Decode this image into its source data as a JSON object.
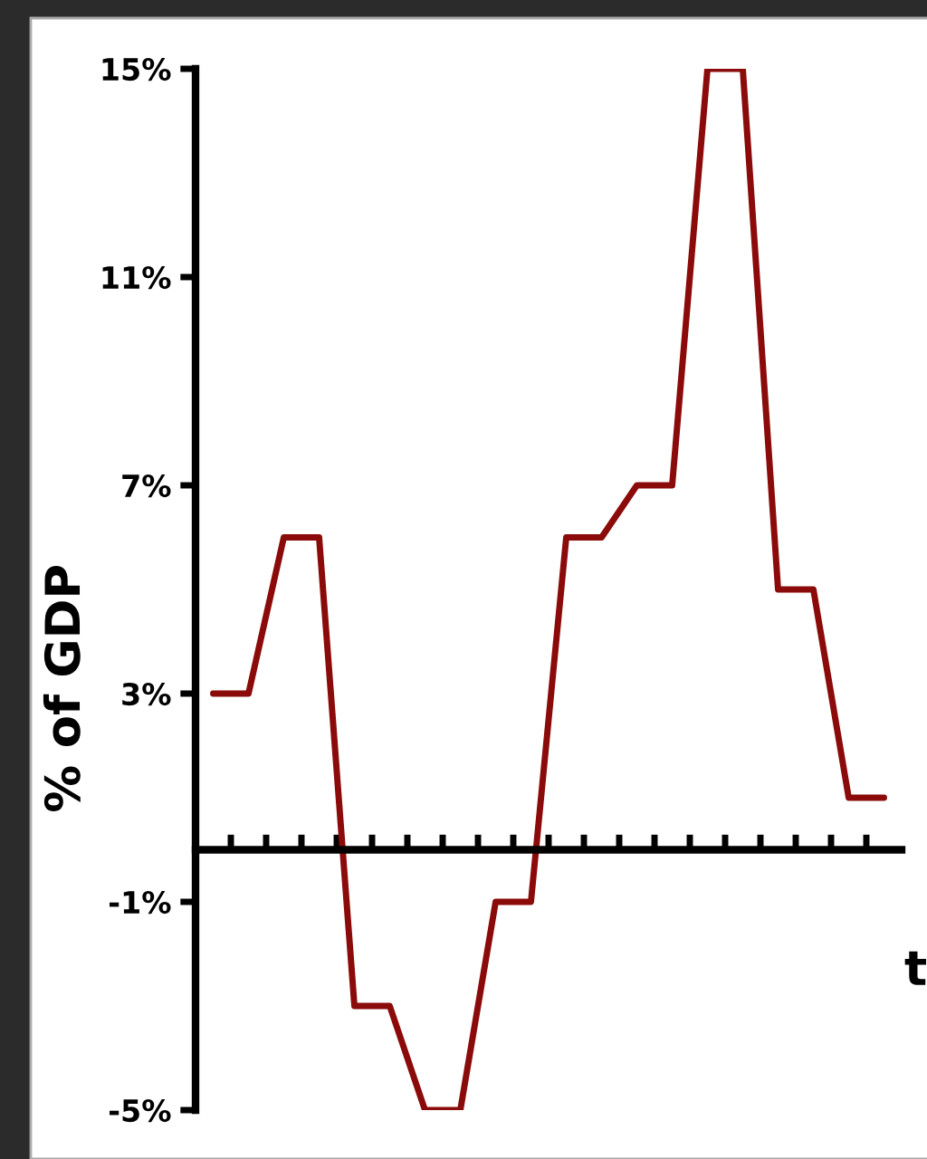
{
  "chart_data": {
    "type": "line",
    "xlabel": "t",
    "ylabel": "% of GDP",
    "categories": [
      null,
      null,
      null,
      null,
      null,
      null,
      null,
      null,
      null,
      null,
      null,
      null,
      null,
      null,
      null,
      null,
      null,
      null,
      null,
      null
    ],
    "series": [
      {
        "color": "#8b0a0a",
        "values": [
          3,
          3,
          6,
          6,
          -3,
          -3,
          -5,
          -5,
          -1,
          -1,
          6,
          6,
          7,
          7,
          15,
          15,
          5,
          5,
          1,
          1
        ]
      }
    ],
    "ylim": [
      -5,
      15
    ],
    "yticks": [
      {
        "value": -5,
        "label": "-5%"
      },
      {
        "value": -1,
        "label": "-1%"
      },
      {
        "value": 3,
        "label": "3%"
      },
      {
        "value": 7,
        "label": "7%"
      },
      {
        "value": 11,
        "label": "11%"
      },
      {
        "value": 15,
        "label": "15%"
      }
    ],
    "tick_labels": "y",
    "grid": false,
    "marker": "none",
    "line_style": "solid"
  }
}
